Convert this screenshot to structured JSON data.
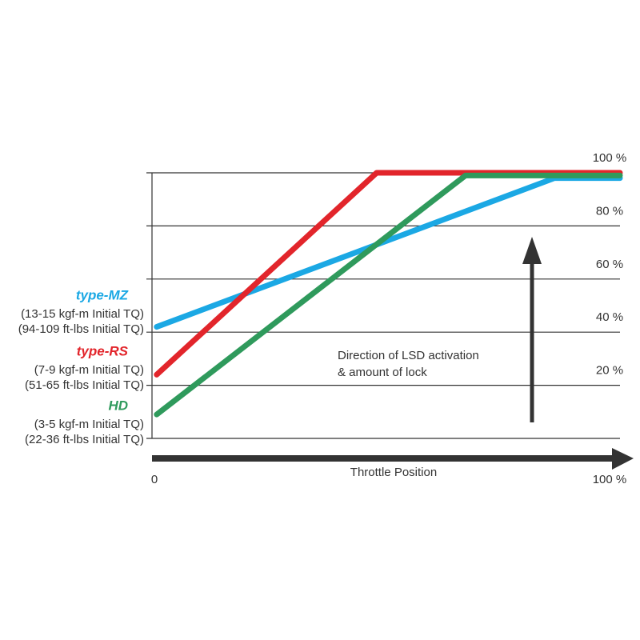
{
  "chart_data": {
    "type": "line",
    "xlabel": "Throttle Position",
    "xlim": [
      0,
      100
    ],
    "xticks": [
      0,
      {
        "value": 100,
        "label": "100 %"
      }
    ],
    "ylim": [
      0,
      100
    ],
    "yticks": [
      {
        "value": 20,
        "label": "20 %"
      },
      {
        "value": 40,
        "label": "40 %"
      },
      {
        "value": 60,
        "label": "60 %"
      },
      {
        "value": 80,
        "label": "80 %"
      },
      {
        "value": 100,
        "label": "100 %"
      }
    ],
    "grid": true,
    "annotation": [
      "Direction of LSD activation",
      "& amount of lock"
    ],
    "series": [
      {
        "name": "type-MZ",
        "color": "#1ba8e4",
        "notes": [
          "(13-15 kgf-m Initial TQ)",
          "(94-109 ft-lbs Initial TQ)"
        ],
        "x": [
          1,
          86,
          100
        ],
        "values": [
          42,
          98,
          98
        ]
      },
      {
        "name": "type-RS",
        "color": "#e2252b",
        "notes": [
          "(7-9 kgf-m Initial TQ)",
          "(51-65 ft-lbs Initial TQ)"
        ],
        "x": [
          1,
          48,
          100
        ],
        "values": [
          24,
          100,
          100
        ]
      },
      {
        "name": "HD",
        "color": "#2f9a5c",
        "notes": [
          "(3-5 kgf-m Initial TQ)",
          "(22-36 ft-lbs Initial TQ)"
        ],
        "x": [
          1,
          67,
          100
        ],
        "values": [
          9,
          99,
          99
        ]
      }
    ]
  }
}
